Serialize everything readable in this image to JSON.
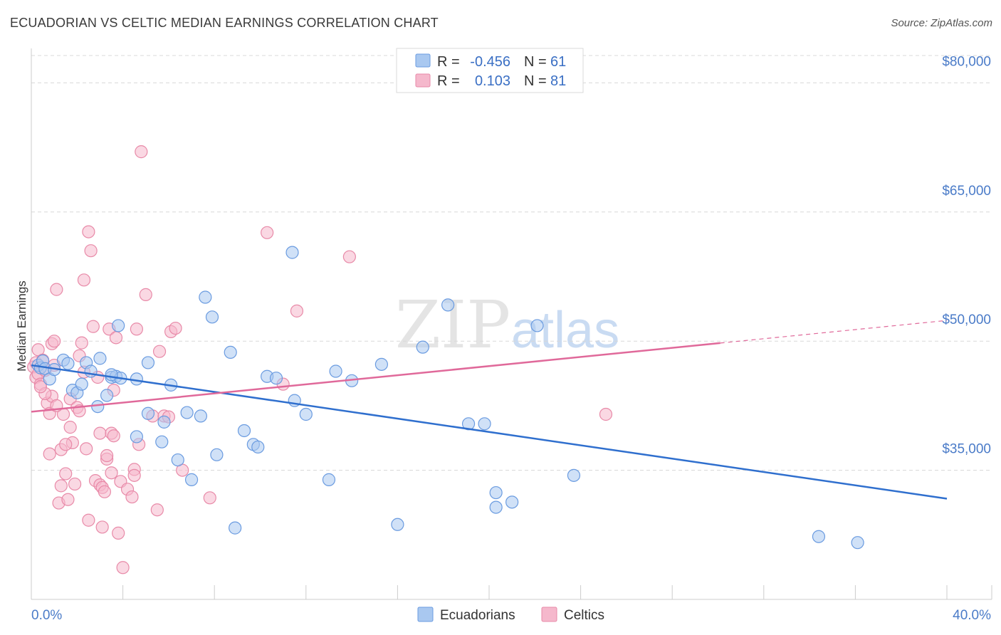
{
  "title": "ECUADORIAN VS CELTIC MEDIAN EARNINGS CORRELATION CHART",
  "source": "Source: ZipAtlas.com",
  "watermark": {
    "zip": "ZIP",
    "atlas": "atlas"
  },
  "colors": {
    "ecuadorian_fill": "#a9c8f0",
    "ecuadorian_stroke": "#6a9be0",
    "ecuadorian_line": "#2f6fce",
    "celtic_fill": "#f5b8cc",
    "celtic_stroke": "#e88aa8",
    "celtic_line": "#e0699a",
    "grid": "#d8d8d8",
    "axis_text": "#4a7bc8"
  },
  "legend": {
    "rows": [
      {
        "r_label": "R =",
        "r_value": "-0.456",
        "n_label": "N =",
        "n_value": "61"
      },
      {
        "r_label": "R =",
        "r_value": "0.103",
        "n_label": "N =",
        "n_value": "81"
      }
    ]
  },
  "chart_data": {
    "type": "scatter",
    "title": "ECUADORIAN VS CELTIC MEDIAN EARNINGS CORRELATION CHART",
    "xlabel": "",
    "ylabel": "Median Earnings",
    "xlim": [
      0,
      40
    ],
    "ylim": [
      20000,
      84000
    ],
    "x_tick_labels": [
      "0.0%",
      "40.0%"
    ],
    "y_ticks": [
      35000,
      50000,
      65000,
      80000
    ],
    "y_tick_labels": [
      "$35,000",
      "$50,000",
      "$65,000",
      "$80,000"
    ],
    "grid": true,
    "legend_position": "bottom",
    "series": [
      {
        "name": "Ecuadorians",
        "r": -0.456,
        "n": 61,
        "trend": {
          "x": [
            0,
            40
          ],
          "y": [
            47200,
            31700
          ],
          "dashed_from": null
        },
        "points": [
          [
            0.3,
            47200
          ],
          [
            0.4,
            46900
          ],
          [
            0.5,
            47700
          ],
          [
            0.6,
            46800
          ],
          [
            0.8,
            45600
          ],
          [
            1.0,
            46700
          ],
          [
            1.4,
            47800
          ],
          [
            1.6,
            47400
          ],
          [
            1.8,
            44300
          ],
          [
            2.0,
            44000
          ],
          [
            2.2,
            45000
          ],
          [
            2.4,
            47500
          ],
          [
            2.6,
            46500
          ],
          [
            2.9,
            42400
          ],
          [
            3.0,
            48000
          ],
          [
            3.3,
            43700
          ],
          [
            3.5,
            45800
          ],
          [
            3.7,
            45900
          ],
          [
            3.8,
            51800
          ],
          [
            3.9,
            45700
          ],
          [
            3.5,
            46100
          ],
          [
            4.6,
            38900
          ],
          [
            4.6,
            45600
          ],
          [
            5.1,
            41600
          ],
          [
            5.1,
            47500
          ],
          [
            5.7,
            38300
          ],
          [
            5.8,
            40600
          ],
          [
            6.1,
            44900
          ],
          [
            6.4,
            36200
          ],
          [
            6.8,
            41700
          ],
          [
            7.0,
            33900
          ],
          [
            7.4,
            41300
          ],
          [
            7.6,
            55100
          ],
          [
            7.9,
            52800
          ],
          [
            8.1,
            36800
          ],
          [
            8.7,
            48700
          ],
          [
            8.9,
            28300
          ],
          [
            9.3,
            39600
          ],
          [
            9.7,
            38000
          ],
          [
            9.9,
            37700
          ],
          [
            10.3,
            45900
          ],
          [
            10.7,
            45700
          ],
          [
            11.4,
            60300
          ],
          [
            11.5,
            43100
          ],
          [
            12.0,
            41500
          ],
          [
            13.0,
            33900
          ],
          [
            13.3,
            46500
          ],
          [
            14.0,
            45400
          ],
          [
            15.3,
            47300
          ],
          [
            16.0,
            28700
          ],
          [
            17.1,
            49300
          ],
          [
            18.2,
            54200
          ],
          [
            19.1,
            40400
          ],
          [
            19.8,
            40400
          ],
          [
            20.3,
            30700
          ],
          [
            20.3,
            32400
          ],
          [
            21.0,
            31300
          ],
          [
            22.1,
            51800
          ],
          [
            23.7,
            34400
          ],
          [
            34.4,
            27300
          ],
          [
            36.1,
            26600
          ]
        ]
      },
      {
        "name": "Celtics",
        "r": 0.103,
        "n": 81,
        "trend": {
          "x": [
            0,
            40
          ],
          "y": [
            41800,
            52400
          ],
          "dashed_from": 30.1
        },
        "points": [
          [
            0.1,
            47000
          ],
          [
            0.2,
            45800
          ],
          [
            0.2,
            47500
          ],
          [
            0.3,
            49000
          ],
          [
            0.3,
            46200
          ],
          [
            0.4,
            45000
          ],
          [
            0.5,
            47800
          ],
          [
            0.6,
            46600
          ],
          [
            0.7,
            42800
          ],
          [
            0.8,
            41600
          ],
          [
            0.8,
            36900
          ],
          [
            0.9,
            43600
          ],
          [
            0.9,
            49700
          ],
          [
            1.0,
            50000
          ],
          [
            1.0,
            47200
          ],
          [
            1.1,
            56000
          ],
          [
            1.2,
            31200
          ],
          [
            1.3,
            33200
          ],
          [
            1.3,
            37400
          ],
          [
            1.4,
            41500
          ],
          [
            1.5,
            34600
          ],
          [
            1.6,
            31600
          ],
          [
            1.7,
            43300
          ],
          [
            1.8,
            38200
          ],
          [
            1.9,
            33400
          ],
          [
            2.0,
            42300
          ],
          [
            2.1,
            48300
          ],
          [
            2.2,
            49800
          ],
          [
            2.3,
            57100
          ],
          [
            2.3,
            46400
          ],
          [
            2.4,
            37500
          ],
          [
            2.5,
            62700
          ],
          [
            2.5,
            29200
          ],
          [
            2.6,
            60500
          ],
          [
            2.7,
            51700
          ],
          [
            2.8,
            33800
          ],
          [
            3.0,
            33300
          ],
          [
            3.0,
            39300
          ],
          [
            3.1,
            28400
          ],
          [
            3.1,
            33000
          ],
          [
            3.2,
            32500
          ],
          [
            3.3,
            36300
          ],
          [
            3.3,
            36700
          ],
          [
            3.4,
            51400
          ],
          [
            3.5,
            34700
          ],
          [
            3.5,
            39300
          ],
          [
            3.6,
            39000
          ],
          [
            3.7,
            50400
          ],
          [
            3.8,
            27700
          ],
          [
            3.9,
            33700
          ],
          [
            4.0,
            23700
          ],
          [
            4.2,
            32800
          ],
          [
            4.4,
            31900
          ],
          [
            4.5,
            35100
          ],
          [
            4.5,
            34400
          ],
          [
            4.6,
            51400
          ],
          [
            4.7,
            38000
          ],
          [
            4.8,
            72000
          ],
          [
            5.0,
            55400
          ],
          [
            5.3,
            41300
          ],
          [
            5.5,
            30400
          ],
          [
            5.6,
            48800
          ],
          [
            5.8,
            41300
          ],
          [
            6.0,
            41200
          ],
          [
            6.1,
            51100
          ],
          [
            6.3,
            51500
          ],
          [
            6.6,
            35000
          ],
          [
            7.8,
            31800
          ],
          [
            10.3,
            62600
          ],
          [
            11.0,
            45000
          ],
          [
            11.6,
            53500
          ],
          [
            13.9,
            59800
          ],
          [
            0.6,
            43900
          ],
          [
            1.7,
            40000
          ],
          [
            2.9,
            45800
          ],
          [
            3.6,
            44300
          ],
          [
            1.1,
            42500
          ],
          [
            2.1,
            41900
          ],
          [
            0.4,
            44700
          ],
          [
            1.5,
            38000
          ],
          [
            25.1,
            41500
          ]
        ]
      }
    ]
  }
}
